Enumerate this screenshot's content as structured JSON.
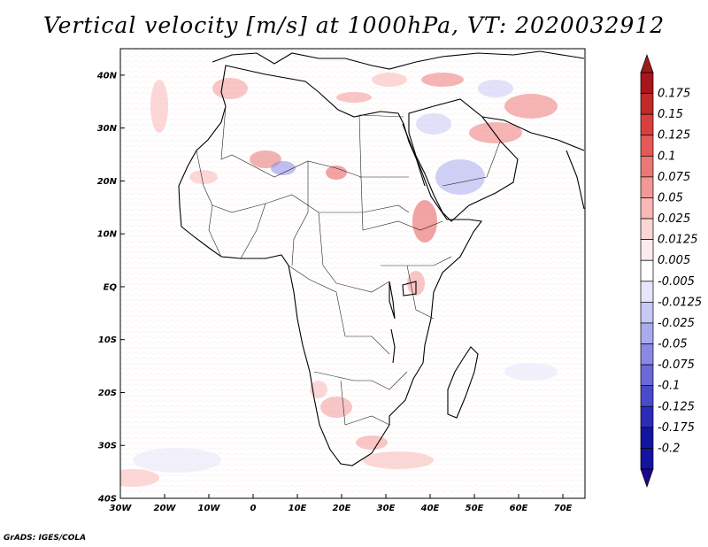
{
  "title": "Vertical velocity [m/s] at 1000hPa, VT: 2020032912",
  "credit": "GrADS: IGES/COLA",
  "map": {
    "lat_ticks": [
      "40N",
      "30N",
      "20N",
      "10N",
      "EQ",
      "10S",
      "20S",
      "30S",
      "40S"
    ],
    "lon_ticks": [
      "30W",
      "20W",
      "10W",
      "0",
      "10E",
      "20E",
      "30E",
      "40E",
      "50E",
      "60E",
      "70E"
    ],
    "lat_range": [
      -40,
      45
    ],
    "lon_range": [
      -30,
      75
    ]
  },
  "colorbar": {
    "levels": [
      {
        "label": "0.175",
        "color": "#a8151c"
      },
      {
        "label": "0.15",
        "color": "#c22a2a"
      },
      {
        "label": "0.125",
        "color": "#d84040"
      },
      {
        "label": "0.1",
        "color": "#e55a58"
      },
      {
        "label": "0.075",
        "color": "#ec7876"
      },
      {
        "label": "0.05",
        "color": "#f29896"
      },
      {
        "label": "0.025",
        "color": "#f7b8b6"
      },
      {
        "label": "0.0125",
        "color": "#fad6d4"
      },
      {
        "label": "0.005",
        "color": "#fdecec"
      },
      {
        "label": "-0.005",
        "color": "#ffffff"
      },
      {
        "label": "-0.0125",
        "color": "#e6e6fa"
      },
      {
        "label": "-0.025",
        "color": "#c8c8f4"
      },
      {
        "label": "-0.05",
        "color": "#aaaaee"
      },
      {
        "label": "-0.075",
        "color": "#8a8ae4"
      },
      {
        "label": "-0.1",
        "color": "#6a6ad8"
      },
      {
        "label": "-0.125",
        "color": "#4a4acc"
      },
      {
        "label": "-0.175",
        "color": "#2c2cb8"
      },
      {
        "label": "-0.2",
        "color": "#1414a0"
      }
    ],
    "bottom_color": "#1a0a8a",
    "top_color": "#9e1a1a"
  }
}
